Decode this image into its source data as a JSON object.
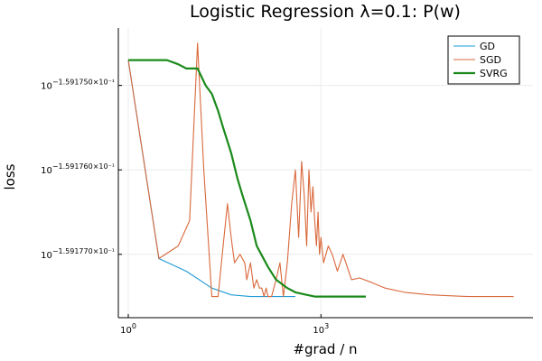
{
  "chart_data": {
    "type": "line",
    "title": "Logistic Regression λ=0.1: P(w)",
    "xlabel": "#grad / n",
    "ylabel": "loss",
    "x_scale": "log10",
    "x_ticks": [
      {
        "value": 1,
        "base": "10",
        "exp": "0"
      },
      {
        "value": 1000,
        "base": "10",
        "exp": "3"
      }
    ],
    "y_ticks": [
      {
        "value": -0.159175,
        "base": "10",
        "exp": "−1.591750×10⁻¹"
      },
      {
        "value": -0.159176,
        "base": "10",
        "exp": "−1.591760×10⁻¹"
      },
      {
        "value": -0.159177,
        "base": "10",
        "exp": "−1.591770×10⁻¹"
      }
    ],
    "xlim": [
      0.7,
      2000000
    ],
    "ylim": [
      -0.15917775,
      -0.15917432
    ],
    "grid": true,
    "legend_position": "top-right",
    "colors": {
      "GD": "#1f9bd6",
      "SGD": "#d9683b",
      "SVRG": "#1a8a1a"
    },
    "series": [
      {
        "name": "GD",
        "x": [
          1,
          3,
          8,
          20,
          40,
          80,
          150,
          400
        ],
        "y": [
          -0.1591747,
          -0.15917705,
          -0.1591772,
          -0.1591774,
          -0.15917748,
          -0.1591775,
          -0.1591775,
          -0.1591775
        ]
      },
      {
        "name": "SGD",
        "x": [
          1,
          3,
          6,
          9,
          12,
          15,
          20,
          25,
          30,
          35,
          40,
          45,
          55,
          65,
          70,
          80,
          90,
          100,
          110,
          120,
          130,
          140,
          150,
          170,
          200,
          230,
          260,
          300,
          350,
          400,
          450,
          500,
          550,
          600,
          650,
          700,
          750,
          800,
          850,
          900,
          950,
          1000,
          1100,
          1300,
          1500,
          1800,
          2200,
          3000,
          4000,
          6000,
          10000,
          20000,
          50000,
          100000,
          200000,
          500000,
          1000000
        ],
        "y": [
          -0.1591747,
          -0.15917705,
          -0.1591769,
          -0.1591766,
          -0.1591745,
          -0.159176,
          -0.1591775,
          -0.1591775,
          -0.1591769,
          -0.1591764,
          -0.1591768,
          -0.1591771,
          -0.159177,
          -0.1591771,
          -0.1591773,
          -0.1591771,
          -0.1591774,
          -0.1591773,
          -0.1591774,
          -0.1591774,
          -0.1591775,
          -0.1591774,
          -0.1591775,
          -0.1591775,
          -0.1591773,
          -0.1591771,
          -0.1591775,
          -0.1591771,
          -0.1591764,
          -0.159176,
          -0.1591768,
          -0.1591759,
          -0.1591763,
          -0.1591769,
          -0.159176,
          -0.1591765,
          -0.1591762,
          -0.1591766,
          -0.1591769,
          -0.1591765,
          -0.159177,
          -0.1591768,
          -0.1591771,
          -0.1591769,
          -0.159177,
          -0.1591772,
          -0.159177,
          -0.1591773,
          -0.15917728,
          -0.15917733,
          -0.1591774,
          -0.15917745,
          -0.15917748,
          -0.15917749,
          -0.1591775,
          -0.1591775,
          -0.1591775
        ]
      },
      {
        "name": "SVRG",
        "x": [
          1,
          2,
          4,
          6,
          8,
          12,
          16,
          20,
          25,
          30,
          40,
          50,
          60,
          80,
          100,
          150,
          200,
          300,
          400,
          600,
          800,
          1000,
          1500,
          2000,
          3000,
          5000
        ],
        "y": [
          -0.1591747,
          -0.1591747,
          -0.1591747,
          -0.15917475,
          -0.1591748,
          -0.1591748,
          -0.159175,
          -0.1591751,
          -0.1591753,
          -0.1591755,
          -0.1591758,
          -0.1591761,
          -0.1591763,
          -0.1591766,
          -0.1591769,
          -0.15917715,
          -0.1591773,
          -0.1591774,
          -0.15917745,
          -0.15917748,
          -0.1591775,
          -0.1591775,
          -0.1591775,
          -0.1591775,
          -0.1591775,
          -0.1591775
        ]
      }
    ]
  }
}
